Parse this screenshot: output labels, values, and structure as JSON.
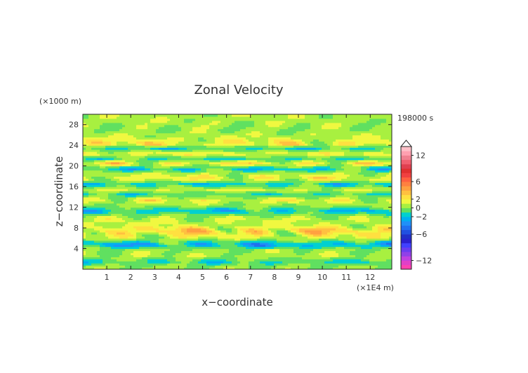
{
  "chart_data": {
    "type": "heatmap",
    "title": "Zonal Velocity",
    "xlabel": "x−coordinate",
    "ylabel": "z−coordinate",
    "x_unit": "(×1E4 m)",
    "y_unit": "(×1000 m)",
    "time_label": "198000 s",
    "xlim": [
      0,
      12.9
    ],
    "ylim": [
      0,
      30
    ],
    "x_ticks": [
      1,
      2,
      3,
      4,
      5,
      6,
      7,
      8,
      9,
      10,
      11,
      12
    ],
    "y_ticks": [
      4,
      8,
      12,
      16,
      20,
      24,
      28
    ],
    "x_tick_labels": [
      "1",
      "2",
      "3",
      "4",
      "5",
      "6",
      "7",
      "8",
      "9",
      "10",
      "11",
      "12"
    ],
    "y_tick_labels": [
      "4",
      "8",
      "12",
      "16",
      "20",
      "24",
      "28"
    ],
    "colorbar": {
      "levels": [
        -14,
        -13,
        -12,
        -11,
        -10,
        -9,
        -8,
        -7,
        -6,
        -5,
        -4,
        -3,
        -2,
        -1,
        0,
        1,
        2,
        3,
        4,
        5,
        6,
        7,
        8,
        9,
        10,
        11,
        12,
        13,
        14
      ],
      "colors": [
        "#ff3fb0",
        "#e040c8",
        "#c040e0",
        "#9040e8",
        "#6a3cf0",
        "#4040ff",
        "#2a20d0",
        "#2030c8",
        "#2050e0",
        "#2070f0",
        "#2090f8",
        "#00b0f0",
        "#00d0d0",
        "#60e060",
        "#a8f040",
        "#f0f840",
        "#ffe040",
        "#ffc040",
        "#ffa040",
        "#ff8040",
        "#ff6040",
        "#f04040",
        "#e03030",
        "#e04050",
        "#f06070",
        "#f08090",
        "#ffa0b0",
        "#ffc0c8"
      ],
      "tick_labels": [
        "12",
        "6",
        "2",
        "0",
        "−2",
        "−6",
        "−12"
      ],
      "tick_values": [
        12,
        6,
        2,
        0,
        -2,
        -6,
        -12
      ]
    },
    "bands": [
      {
        "z": 28.8,
        "u": 1.0
      },
      {
        "z": 27.0,
        "u": 0.5
      },
      {
        "z": 25.5,
        "u": 1.5
      },
      {
        "z": 24.3,
        "u": 3.5
      },
      {
        "z": 23.5,
        "u": -2.5
      },
      {
        "z": 22.4,
        "u": 3.0
      },
      {
        "z": 21.5,
        "u": -2.0
      },
      {
        "z": 20.5,
        "u": 3.5
      },
      {
        "z": 19.5,
        "u": -3.0
      },
      {
        "z": 18.5,
        "u": 1.5
      },
      {
        "z": 17.6,
        "u": 3.0
      },
      {
        "z": 16.5,
        "u": -3.0
      },
      {
        "z": 15.5,
        "u": 2.0
      },
      {
        "z": 14.5,
        "u": -2.0
      },
      {
        "z": 13.5,
        "u": 2.5
      },
      {
        "z": 12.5,
        "u": 0.5
      },
      {
        "z": 11.3,
        "u": -3.0
      },
      {
        "z": 10.0,
        "u": 1.5
      },
      {
        "z": 8.7,
        "u": 1.5
      },
      {
        "z": 7.5,
        "u": 4.5
      },
      {
        "z": 6.0,
        "u": 1.5
      },
      {
        "z": 4.8,
        "u": -4.5
      },
      {
        "z": 3.8,
        "u": 0.5
      },
      {
        "z": 2.6,
        "u": 1.0
      },
      {
        "z": 1.5,
        "u": -2.0
      },
      {
        "z": 0.5,
        "u": 0.5
      }
    ]
  }
}
